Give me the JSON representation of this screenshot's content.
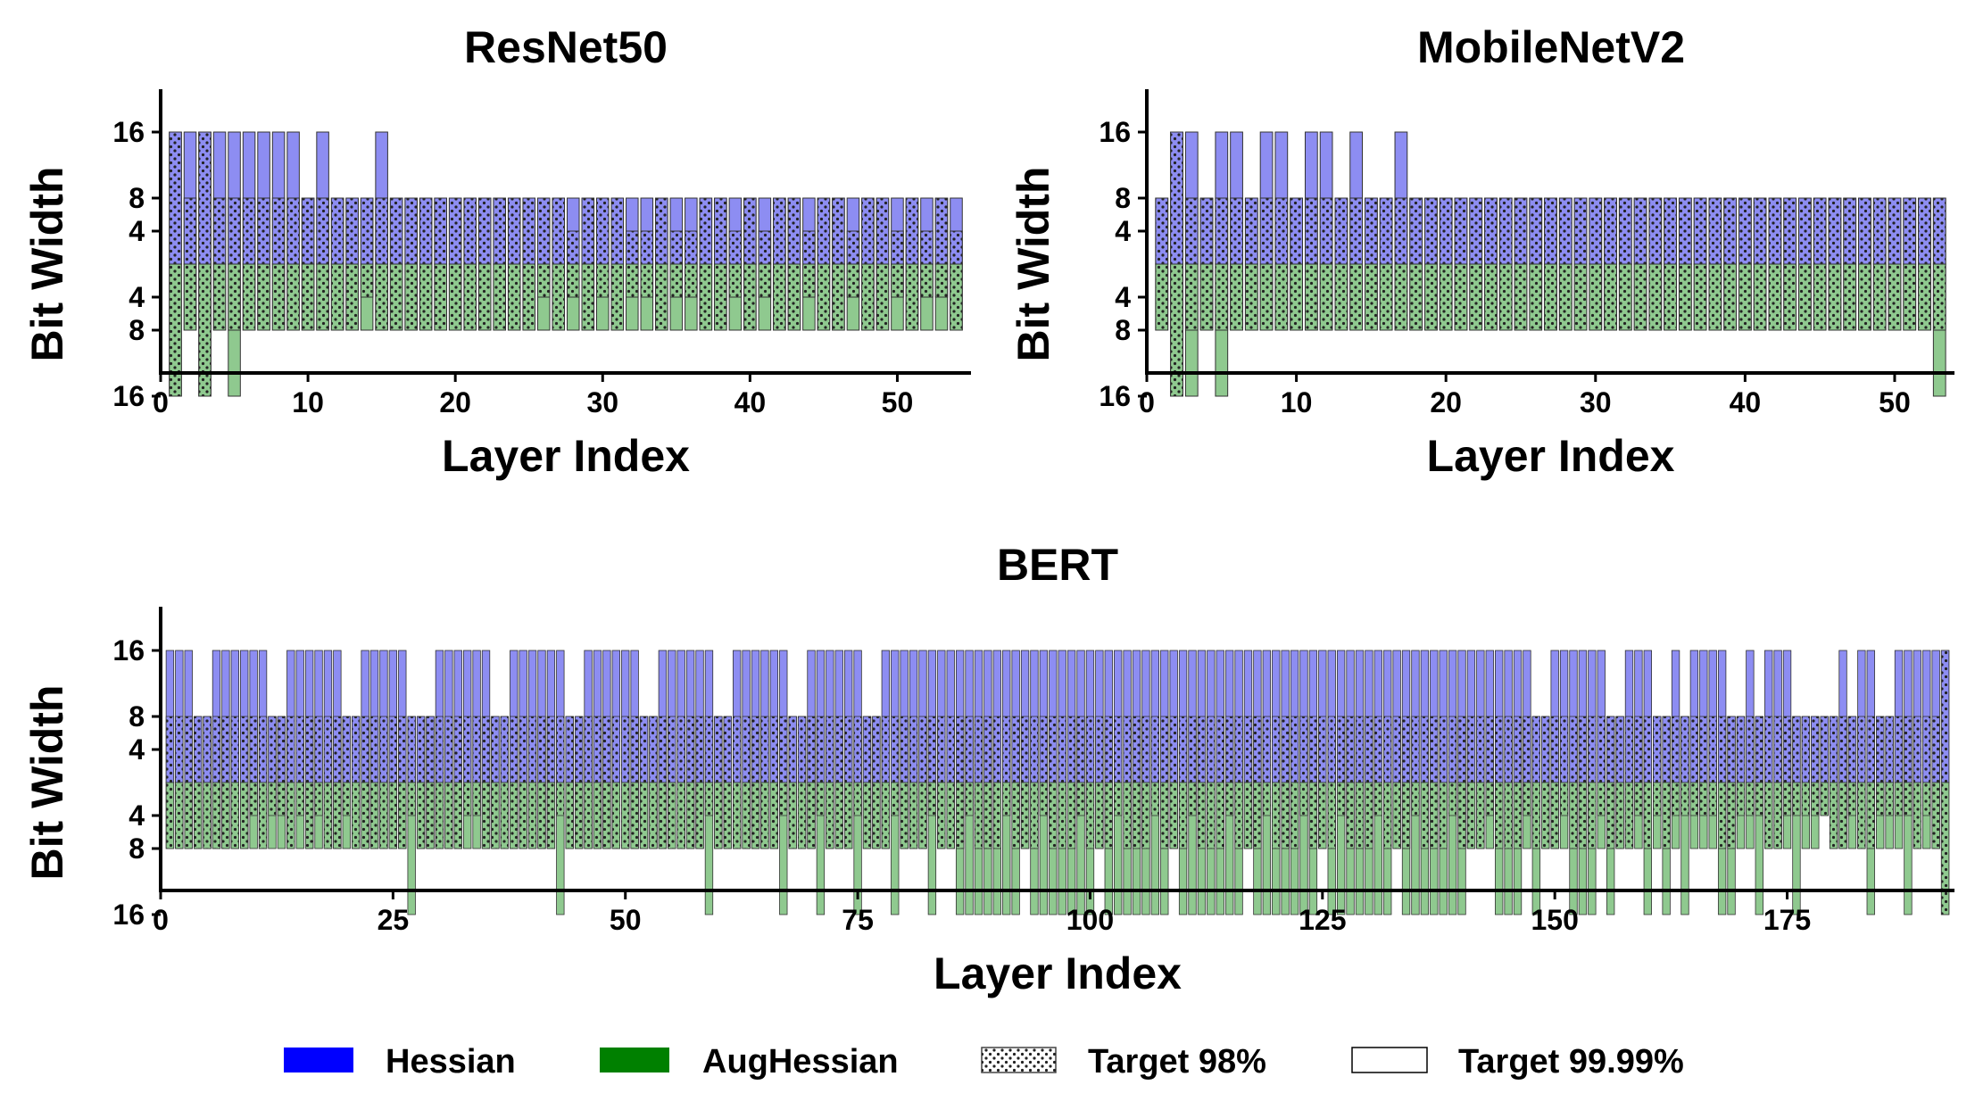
{
  "figure": {
    "legend": {
      "items": [
        {
          "label": "Hessian",
          "kind": "hessian-swatch",
          "color": "#0000ff"
        },
        {
          "label": "AugHessian",
          "kind": "aughessian-swatch",
          "color": "#008000"
        },
        {
          "label": "Target 98%",
          "kind": "target98-swatch"
        },
        {
          "label": "Target 99.99%",
          "kind": "target9999-swatch"
        }
      ]
    },
    "colors": {
      "hessian_fill": "#8d8df2",
      "aughessian_fill": "#8fc98f",
      "edge": "#333333"
    }
  },
  "chart_data": [
    {
      "id": "resnet50",
      "type": "bar",
      "title": "ResNet50",
      "xlabel": "Layer Index",
      "ylabel": "Bit Width",
      "xlim": [
        0,
        55
      ],
      "xticks": [
        0,
        10,
        20,
        30,
        40,
        50
      ],
      "bit_levels": [
        4,
        8,
        16
      ],
      "ytick_labels": [
        "16",
        "8",
        "4",
        "4",
        "8",
        "16"
      ],
      "upper_series": "Hessian",
      "lower_series": "AugHessian",
      "layers": [
        1,
        2,
        3,
        4,
        5,
        6,
        7,
        8,
        9,
        10,
        11,
        12,
        13,
        14,
        15,
        16,
        17,
        18,
        19,
        20,
        21,
        22,
        23,
        24,
        25,
        26,
        27,
        28,
        29,
        30,
        31,
        32,
        33,
        34,
        35,
        36,
        37,
        38,
        39,
        40,
        41,
        42,
        43,
        44,
        45,
        46,
        47,
        48,
        49,
        50,
        51,
        52,
        53,
        54
      ],
      "hessian_98": [
        16,
        8,
        16,
        8,
        8,
        8,
        8,
        8,
        8,
        8,
        8,
        8,
        8,
        8,
        8,
        8,
        8,
        8,
        8,
        8,
        8,
        8,
        8,
        8,
        8,
        8,
        8,
        4,
        8,
        8,
        8,
        4,
        4,
        8,
        4,
        4,
        8,
        8,
        4,
        8,
        4,
        8,
        8,
        4,
        8,
        8,
        4,
        8,
        8,
        4,
        8,
        4,
        8,
        4
      ],
      "hessian_9999": [
        16,
        16,
        16,
        16,
        16,
        16,
        16,
        16,
        16,
        8,
        16,
        8,
        8,
        8,
        16,
        8,
        8,
        8,
        8,
        8,
        8,
        8,
        8,
        8,
        8,
        8,
        8,
        8,
        8,
        8,
        8,
        8,
        8,
        8,
        8,
        8,
        8,
        8,
        8,
        8,
        8,
        8,
        8,
        8,
        8,
        8,
        8,
        8,
        8,
        8,
        8,
        8,
        8,
        8
      ],
      "aug_98": [
        16,
        8,
        16,
        8,
        8,
        8,
        8,
        8,
        8,
        8,
        8,
        8,
        8,
        4,
        8,
        8,
        8,
        8,
        8,
        8,
        8,
        8,
        8,
        8,
        8,
        4,
        8,
        4,
        8,
        4,
        8,
        4,
        4,
        8,
        4,
        4,
        8,
        8,
        4,
        8,
        4,
        8,
        8,
        4,
        8,
        8,
        4,
        8,
        8,
        4,
        8,
        4,
        4,
        8
      ],
      "aug_9999": [
        16,
        8,
        16,
        8,
        16,
        8,
        8,
        8,
        8,
        8,
        8,
        8,
        8,
        8,
        8,
        8,
        8,
        8,
        8,
        8,
        8,
        8,
        8,
        8,
        8,
        8,
        8,
        8,
        8,
        8,
        8,
        8,
        8,
        8,
        8,
        8,
        8,
        8,
        8,
        8,
        8,
        8,
        8,
        8,
        8,
        8,
        8,
        8,
        8,
        8,
        8,
        8,
        8,
        8
      ]
    },
    {
      "id": "mobilenetv2",
      "type": "bar",
      "title": "MobileNetV2",
      "xlabel": "Layer Index",
      "ylabel": "Bit Width",
      "xlim": [
        0,
        54
      ],
      "xticks": [
        0,
        10,
        20,
        30,
        40,
        50
      ],
      "bit_levels": [
        4,
        8,
        16
      ],
      "ytick_labels": [
        "16",
        "8",
        "4",
        "4",
        "8",
        "16"
      ],
      "upper_series": "Hessian",
      "lower_series": "AugHessian",
      "layers": [
        1,
        2,
        3,
        4,
        5,
        6,
        7,
        8,
        9,
        10,
        11,
        12,
        13,
        14,
        15,
        16,
        17,
        18,
        19,
        20,
        21,
        22,
        23,
        24,
        25,
        26,
        27,
        28,
        29,
        30,
        31,
        32,
        33,
        34,
        35,
        36,
        37,
        38,
        39,
        40,
        41,
        42,
        43,
        44,
        45,
        46,
        47,
        48,
        49,
        50,
        51,
        52,
        53
      ],
      "hessian_98": [
        8,
        16,
        8,
        8,
        8,
        8,
        8,
        8,
        8,
        8,
        8,
        8,
        8,
        8,
        8,
        8,
        8,
        8,
        8,
        8,
        8,
        8,
        8,
        8,
        8,
        8,
        8,
        8,
        8,
        8,
        8,
        8,
        8,
        8,
        8,
        8,
        8,
        8,
        8,
        8,
        8,
        8,
        8,
        8,
        8,
        8,
        8,
        8,
        8,
        8,
        8,
        8,
        8
      ],
      "hessian_9999": [
        8,
        16,
        16,
        8,
        16,
        16,
        8,
        16,
        16,
        8,
        16,
        16,
        8,
        16,
        8,
        8,
        16,
        8,
        8,
        8,
        8,
        8,
        8,
        8,
        8,
        8,
        8,
        8,
        8,
        8,
        8,
        8,
        8,
        8,
        8,
        8,
        8,
        8,
        8,
        8,
        8,
        8,
        8,
        8,
        8,
        8,
        8,
        8,
        8,
        8,
        8,
        8,
        8
      ],
      "aug_98": [
        8,
        16,
        8,
        8,
        8,
        8,
        8,
        8,
        8,
        8,
        8,
        8,
        8,
        8,
        8,
        8,
        8,
        8,
        8,
        8,
        8,
        8,
        8,
        8,
        8,
        8,
        8,
        8,
        8,
        8,
        8,
        8,
        8,
        8,
        8,
        8,
        8,
        8,
        8,
        8,
        8,
        8,
        8,
        8,
        8,
        8,
        8,
        8,
        8,
        8,
        8,
        8,
        8
      ],
      "aug_9999": [
        8,
        16,
        16,
        8,
        16,
        8,
        8,
        8,
        8,
        8,
        8,
        8,
        8,
        8,
        8,
        8,
        8,
        8,
        8,
        8,
        8,
        8,
        8,
        8,
        8,
        4,
        8,
        8,
        8,
        8,
        8,
        8,
        8,
        8,
        8,
        8,
        8,
        8,
        8,
        8,
        8,
        8,
        8,
        8,
        8,
        8,
        8,
        8,
        8,
        8,
        8,
        8,
        16
      ]
    },
    {
      "id": "bert",
      "type": "bar",
      "title": "BERT",
      "xlabel": "Layer Index",
      "ylabel": "Bit Width",
      "xlim": [
        0,
        193
      ],
      "xticks": [
        0,
        25,
        50,
        75,
        100,
        125,
        150,
        175
      ],
      "bit_levels": [
        4,
        8,
        16
      ],
      "ytick_labels": [
        "16",
        "8",
        "4",
        "4",
        "8",
        "16"
      ],
      "upper_series": "Hessian",
      "lower_series": "AugHessian",
      "n_layers": 192,
      "hessian_98_all": 8,
      "hessian_98_at_16": [
        192
      ],
      "hessian_9999_at_16": [
        1,
        2,
        3,
        6,
        7,
        8,
        9,
        10,
        11,
        14,
        15,
        16,
        17,
        18,
        19,
        22,
        23,
        24,
        25,
        26,
        30,
        31,
        32,
        33,
        34,
        35,
        38,
        39,
        40,
        41,
        42,
        43,
        46,
        47,
        48,
        49,
        50,
        51,
        54,
        55,
        56,
        57,
        58,
        59,
        62,
        63,
        64,
        65,
        66,
        67,
        70,
        71,
        72,
        73,
        74,
        75,
        78,
        79,
        80,
        81,
        82,
        83,
        84,
        85,
        86,
        87,
        88,
        89,
        90,
        91,
        92,
        93,
        94,
        95,
        96,
        97,
        98,
        99,
        100,
        101,
        102,
        103,
        104,
        105,
        106,
        107,
        108,
        109,
        110,
        111,
        112,
        113,
        114,
        115,
        116,
        117,
        118,
        119,
        120,
        121,
        122,
        123,
        124,
        125,
        126,
        127,
        128,
        129,
        130,
        131,
        132,
        133,
        134,
        135,
        136,
        137,
        138,
        139,
        140,
        141,
        142,
        143,
        144,
        145,
        146,
        147,
        150,
        151,
        152,
        153,
        154,
        155,
        158,
        159,
        160,
        163,
        165,
        166,
        167,
        168,
        171,
        173,
        174,
        175,
        181,
        183,
        184,
        187,
        188,
        189,
        190,
        191,
        192
      ],
      "hessian_9999_at_4": [],
      "aug_98_all": 8,
      "aug_98_at_4": [
        10,
        12,
        13,
        15,
        17,
        20,
        27,
        33,
        34,
        43,
        59,
        67,
        71,
        75,
        79,
        83,
        87,
        91,
        95,
        99,
        103,
        107,
        111,
        115,
        119,
        123,
        127,
        131,
        135,
        139,
        143,
        147,
        151,
        155,
        159,
        161,
        163,
        164,
        165,
        166,
        167,
        170,
        171,
        172,
        175,
        176,
        177,
        178,
        179,
        182,
        185,
        186,
        187,
        188,
        190
      ],
      "aug_98_at_16": [
        192
      ],
      "aug_9999_at_16": [
        27,
        43,
        59,
        67,
        71,
        75,
        79,
        83,
        86,
        87,
        88,
        89,
        90,
        91,
        92,
        94,
        95,
        96,
        97,
        98,
        99,
        100,
        102,
        103,
        104,
        105,
        106,
        107,
        108,
        110,
        111,
        112,
        113,
        114,
        115,
        116,
        118,
        119,
        120,
        121,
        122,
        123,
        124,
        126,
        127,
        128,
        129,
        130,
        131,
        132,
        134,
        135,
        136,
        137,
        138,
        139,
        140,
        144,
        145,
        146,
        148,
        152,
        153,
        154,
        156,
        160,
        162,
        164,
        168,
        169,
        172,
        176,
        184,
        188,
        192
      ],
      "aug_9999_at_4": [
        179
      ]
    }
  ]
}
